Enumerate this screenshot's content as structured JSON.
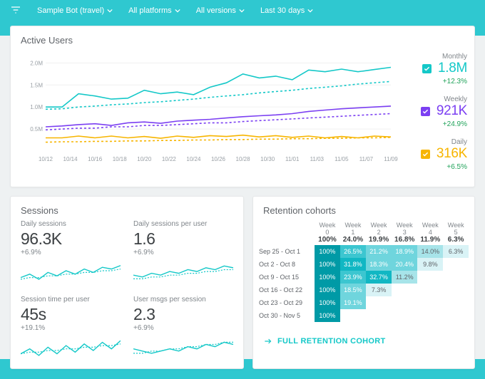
{
  "colors": {
    "monthly": "#14c8c8",
    "weekly": "#7b3ff2",
    "daily": "#f7b500",
    "delta_positive": "#21a35a",
    "link": "#14c8c8",
    "grid": "#f0f0f0",
    "text_muted": "#9aa0a6",
    "heat_scale": [
      "#d9f3f6",
      "#a7e4e9",
      "#6fd5dd",
      "#3cc6d0",
      "#11b7c3",
      "#009aa6"
    ]
  },
  "topbar": {
    "filters": [
      {
        "label": "Sample Bot (travel)"
      },
      {
        "label": "All platforms"
      },
      {
        "label": "All versions"
      },
      {
        "label": "Last 30 days"
      }
    ]
  },
  "active_users": {
    "title": "Active Users",
    "y_ticks": [
      "2.0M",
      "1.5M",
      "1.0M",
      "0.5M"
    ],
    "x_ticks": [
      "10/12",
      "10/14",
      "10/16",
      "10/18",
      "10/20",
      "10/22",
      "10/24",
      "10/26",
      "10/28",
      "10/30",
      "11/01",
      "11/03",
      "11/05",
      "11/07",
      "11/09"
    ],
    "ylim_max": 2.2,
    "series": {
      "monthly": {
        "solid": [
          1.0,
          1.0,
          1.3,
          1.25,
          1.18,
          1.2,
          1.38,
          1.3,
          1.34,
          1.28,
          1.45,
          1.55,
          1.75,
          1.66,
          1.7,
          1.62,
          1.84,
          1.8,
          1.86,
          1.8,
          1.85,
          1.9
        ],
        "dashed": [
          0.95,
          0.96,
          1.0,
          1.02,
          1.05,
          1.07,
          1.1,
          1.12,
          1.15,
          1.18,
          1.22,
          1.25,
          1.28,
          1.32,
          1.35,
          1.38,
          1.42,
          1.45,
          1.48,
          1.52,
          1.55,
          1.58
        ]
      },
      "weekly": {
        "solid": [
          0.55,
          0.57,
          0.6,
          0.62,
          0.58,
          0.64,
          0.66,
          0.63,
          0.68,
          0.7,
          0.72,
          0.75,
          0.78,
          0.8,
          0.82,
          0.85,
          0.9,
          0.93,
          0.96,
          0.98,
          1.0,
          1.02
        ],
        "dashed": [
          0.48,
          0.5,
          0.52,
          0.52,
          0.55,
          0.55,
          0.58,
          0.58,
          0.6,
          0.62,
          0.64,
          0.64,
          0.67,
          0.69,
          0.71,
          0.73,
          0.75,
          0.77,
          0.79,
          0.81,
          0.83,
          0.85
        ]
      },
      "daily": {
        "solid": [
          0.3,
          0.3,
          0.34,
          0.3,
          0.34,
          0.3,
          0.33,
          0.29,
          0.34,
          0.31,
          0.35,
          0.33,
          0.36,
          0.32,
          0.35,
          0.31,
          0.34,
          0.3,
          0.33,
          0.3,
          0.34,
          0.32
        ],
        "dashed": [
          0.2,
          0.21,
          0.21,
          0.22,
          0.22,
          0.23,
          0.23,
          0.24,
          0.24,
          0.25,
          0.25,
          0.26,
          0.26,
          0.27,
          0.27,
          0.28,
          0.28,
          0.29,
          0.29,
          0.3,
          0.3,
          0.31
        ]
      }
    },
    "legend": [
      {
        "key": "monthly",
        "label": "Monthly",
        "value": "1.8M",
        "delta": "+12.3%",
        "color": "#14c8c8"
      },
      {
        "key": "weekly",
        "label": "Weekly",
        "value": "921K",
        "delta": "+24.9%",
        "color": "#7b3ff2"
      },
      {
        "key": "daily",
        "label": "Daily",
        "value": "316K",
        "delta": "+6.5%",
        "color": "#f7b500"
      }
    ]
  },
  "sessions": {
    "title": "Sessions",
    "metrics": [
      {
        "label": "Daily sessions",
        "value": "96.3K",
        "delta": "+6.9%",
        "spark_solid": [
          12,
          14,
          11,
          15,
          13,
          16,
          14,
          17,
          15,
          18,
          17,
          19
        ],
        "spark_dashed": [
          11,
          12,
          12,
          13,
          13,
          14,
          14,
          15,
          15,
          16,
          16,
          17
        ]
      },
      {
        "label": "Daily sessions per user",
        "value": "1.6",
        "delta": "+6.9%",
        "spark_solid": [
          14,
          13,
          15,
          14,
          16,
          15,
          17,
          16,
          18,
          17,
          19,
          18
        ],
        "spark_dashed": [
          12,
          12,
          13,
          13,
          14,
          14,
          15,
          15,
          16,
          16,
          17,
          17
        ]
      },
      {
        "label": "Session time per user",
        "value": "45s",
        "delta": "+19.1%",
        "spark_solid": [
          10,
          13,
          9,
          14,
          10,
          15,
          11,
          16,
          12,
          17,
          13,
          18
        ],
        "spark_dashed": [
          10,
          11,
          11,
          12,
          12,
          13,
          13,
          14,
          14,
          15,
          15,
          16
        ]
      },
      {
        "label": "User msgs per session",
        "value": "2.3",
        "delta": "+6.9%",
        "spark_solid": [
          15,
          14,
          13,
          14,
          15,
          14,
          16,
          15,
          17,
          16,
          18,
          17
        ],
        "spark_dashed": [
          13,
          13,
          14,
          14,
          15,
          15,
          16,
          16,
          17,
          17,
          18,
          18
        ]
      }
    ]
  },
  "retention": {
    "title": "Retention cohorts",
    "link_label": "FULL RETENTION COHORT",
    "columns": [
      {
        "label": "Week 0",
        "value": "100%"
      },
      {
        "label": "Week 1",
        "value": "24.0%"
      },
      {
        "label": "Week 2",
        "value": "19.9%"
      },
      {
        "label": "Week 3",
        "value": "16.8%"
      },
      {
        "label": "Week 4",
        "value": "11.9%"
      },
      {
        "label": "Week 5",
        "value": "6.3%"
      }
    ],
    "rows": [
      {
        "label": "Sep 25 - Oct 1",
        "cells": [
          "100%",
          "26.5%",
          "21.2%",
          "18.9%",
          "14.0%",
          "6.3%"
        ]
      },
      {
        "label": "Oct 2 - Oct 8",
        "cells": [
          "100%",
          "31.8%",
          "18.3%",
          "20.4%",
          "9.8%",
          null
        ]
      },
      {
        "label": "Oct 9 - Oct 15",
        "cells": [
          "100%",
          "23.9%",
          "32.7%",
          "11.2%",
          null,
          null
        ]
      },
      {
        "label": "Oct 16 - Oct 22",
        "cells": [
          "100%",
          "18.5%",
          "7.3%",
          null,
          null,
          null
        ]
      },
      {
        "label": "Oct 23 - Oct 29",
        "cells": [
          "100%",
          "19.1%",
          null,
          null,
          null,
          null
        ]
      },
      {
        "label": "Oct 30 - Nov 5",
        "cells": [
          "100%",
          null,
          null,
          null,
          null,
          null
        ]
      }
    ]
  }
}
